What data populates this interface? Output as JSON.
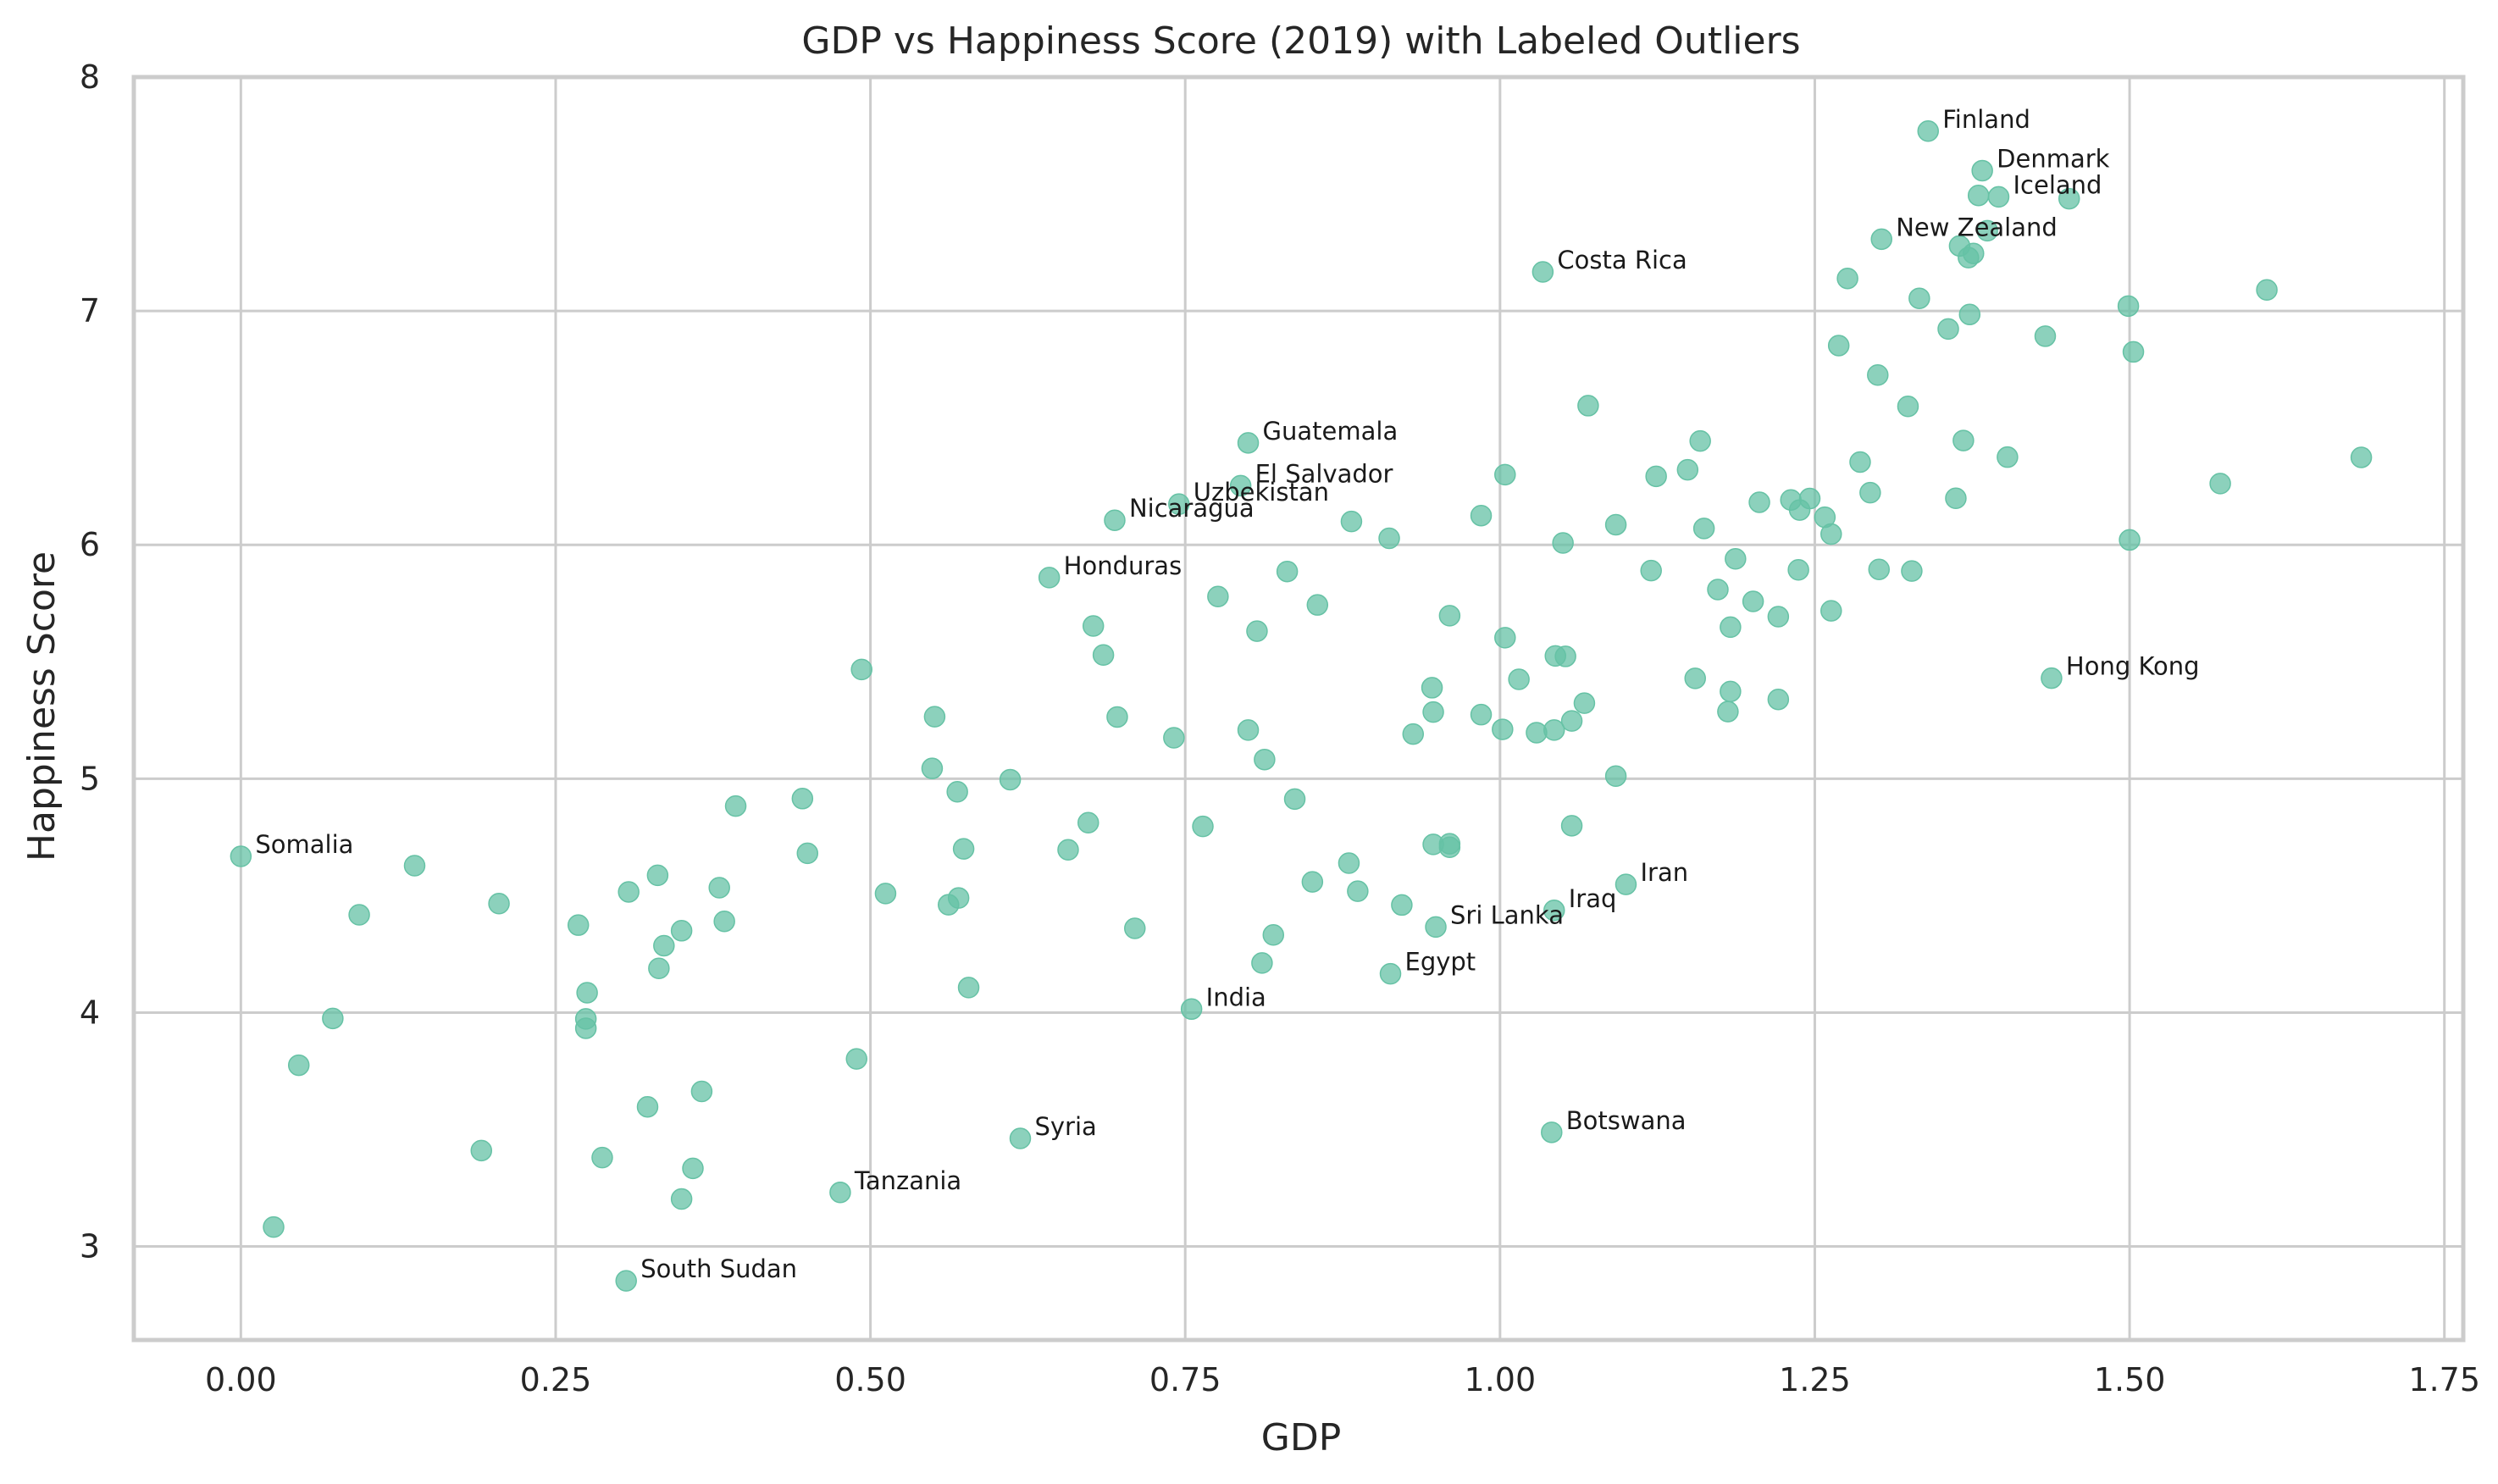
{
  "chart_data": {
    "type": "scatter",
    "title": "GDP vs Happiness Score (2019) with Labeled Outliers",
    "xlabel": "GDP",
    "ylabel": "Happiness Score",
    "xlim": [
      -0.085,
      1.765
    ],
    "ylim": [
      2.6,
      8.0
    ],
    "xticks": [
      0.0,
      0.25,
      0.5,
      0.75,
      1.0,
      1.25,
      1.5,
      1.75
    ],
    "xtick_labels": [
      "0.00",
      "0.25",
      "0.50",
      "0.75",
      "1.00",
      "1.25",
      "1.50",
      "1.75"
    ],
    "yticks": [
      3,
      4,
      5,
      6,
      7,
      8
    ],
    "ytick_labels": [
      "3",
      "4",
      "5",
      "6",
      "7",
      "8"
    ],
    "grid": true,
    "colors": {
      "point": "#66c2a5",
      "grid": "#cccccc",
      "spine": "#cccccc"
    },
    "points": [
      [
        1.34,
        7.769
      ],
      [
        1.383,
        7.6
      ],
      [
        1.38,
        7.494
      ],
      [
        1.396,
        7.488
      ],
      [
        1.452,
        7.48
      ],
      [
        1.387,
        7.343
      ],
      [
        1.303,
        7.307
      ],
      [
        1.365,
        7.278
      ],
      [
        1.376,
        7.246
      ],
      [
        1.372,
        7.228
      ],
      [
        1.034,
        7.167
      ],
      [
        1.276,
        7.139
      ],
      [
        1.609,
        7.09
      ],
      [
        1.333,
        7.054
      ],
      [
        1.499,
        7.021
      ],
      [
        1.373,
        6.985
      ],
      [
        1.356,
        6.923
      ],
      [
        1.433,
        6.892
      ],
      [
        1.269,
        6.852
      ],
      [
        1.503,
        6.825
      ],
      [
        1.3,
        6.726
      ],
      [
        1.07,
        6.595
      ],
      [
        1.324,
        6.592
      ],
      [
        1.368,
        6.446
      ],
      [
        1.159,
        6.444
      ],
      [
        0.8,
        6.436
      ],
      [
        1.403,
        6.375
      ],
      [
        1.684,
        6.374
      ],
      [
        1.286,
        6.354
      ],
      [
        1.149,
        6.321
      ],
      [
        1.004,
        6.3
      ],
      [
        1.124,
        6.293
      ],
      [
        1.572,
        6.262
      ],
      [
        0.794,
        6.253
      ],
      [
        1.294,
        6.223
      ],
      [
        1.362,
        6.199
      ],
      [
        1.246,
        6.198
      ],
      [
        1.231,
        6.192
      ],
      [
        1.206,
        6.182
      ],
      [
        0.745,
        6.174
      ],
      [
        1.238,
        6.149
      ],
      [
        0.985,
        6.125
      ],
      [
        1.258,
        6.118
      ],
      [
        0.694,
        6.105
      ],
      [
        0.882,
        6.1
      ],
      [
        1.092,
        6.086
      ],
      [
        1.162,
        6.07
      ],
      [
        1.263,
        6.046
      ],
      [
        0.912,
        6.028
      ],
      [
        1.5,
        6.021
      ],
      [
        1.05,
        6.008
      ],
      [
        1.187,
        5.94
      ],
      [
        1.301,
        5.895
      ],
      [
        1.237,
        5.893
      ],
      [
        1.12,
        5.89
      ],
      [
        1.327,
        5.888
      ],
      [
        0.831,
        5.886
      ],
      [
        0.642,
        5.86
      ],
      [
        1.173,
        5.809
      ],
      [
        0.776,
        5.779
      ],
      [
        1.201,
        5.758
      ],
      [
        0.855,
        5.743
      ],
      [
        1.263,
        5.718
      ],
      [
        0.96,
        5.697
      ],
      [
        1.221,
        5.693
      ],
      [
        0.677,
        5.653
      ],
      [
        1.183,
        5.648
      ],
      [
        0.807,
        5.631
      ],
      [
        1.004,
        5.603
      ],
      [
        0.685,
        5.529
      ],
      [
        1.044,
        5.525
      ],
      [
        1.052,
        5.523
      ],
      [
        1.438,
        5.43
      ],
      [
        1.015,
        5.425
      ],
      [
        1.155,
        5.429
      ],
      [
        0.493,
        5.467
      ],
      [
        0.946,
        5.389
      ],
      [
        1.183,
        5.373
      ],
      [
        1.221,
        5.339
      ],
      [
        1.067,
        5.323
      ],
      [
        1.181,
        5.287
      ],
      [
        0.947,
        5.285
      ],
      [
        0.985,
        5.274
      ],
      [
        0.551,
        5.265
      ],
      [
        0.696,
        5.264
      ],
      [
        1.057,
        5.247
      ],
      [
        1.002,
        5.211
      ],
      [
        1.043,
        5.208
      ],
      [
        0.8,
        5.208
      ],
      [
        0.931,
        5.191
      ],
      [
        1.029,
        5.197
      ],
      [
        0.741,
        5.175
      ],
      [
        0.813,
        5.082
      ],
      [
        0.549,
        5.044
      ],
      [
        1.092,
        5.011
      ],
      [
        0.611,
        4.996
      ],
      [
        0.569,
        4.944
      ],
      [
        0.837,
        4.913
      ],
      [
        0.446,
        4.915
      ],
      [
        0.393,
        4.883
      ],
      [
        0.673,
        4.812
      ],
      [
        1.057,
        4.799
      ],
      [
        0.764,
        4.796
      ],
      [
        0.96,
        4.722
      ],
      [
        0.947,
        4.719
      ],
      [
        0.96,
        4.707
      ],
      [
        0.574,
        4.7
      ],
      [
        0.657,
        4.696
      ],
      [
        0.45,
        4.681
      ],
      [
        0.0,
        4.668
      ],
      [
        0.88,
        4.639
      ],
      [
        0.138,
        4.628
      ],
      [
        0.331,
        4.587
      ],
      [
        1.1,
        4.548
      ],
      [
        0.851,
        4.559
      ],
      [
        0.38,
        4.534
      ],
      [
        0.887,
        4.519
      ],
      [
        0.308,
        4.516
      ],
      [
        0.512,
        4.509
      ],
      [
        0.57,
        4.49
      ],
      [
        0.205,
        4.466
      ],
      [
        0.562,
        4.461
      ],
      [
        0.922,
        4.46
      ],
      [
        1.043,
        4.437
      ],
      [
        0.094,
        4.418
      ],
      [
        0.384,
        4.39
      ],
      [
        0.268,
        4.374
      ],
      [
        0.949,
        4.366
      ],
      [
        0.71,
        4.36
      ],
      [
        0.35,
        4.35
      ],
      [
        0.82,
        4.332
      ],
      [
        0.336,
        4.286
      ],
      [
        0.811,
        4.212
      ],
      [
        0.332,
        4.189
      ],
      [
        0.913,
        4.166
      ],
      [
        0.578,
        4.107
      ],
      [
        0.275,
        4.085
      ],
      [
        0.755,
        4.015
      ],
      [
        0.073,
        3.975
      ],
      [
        0.274,
        3.973
      ],
      [
        0.274,
        3.933
      ],
      [
        0.489,
        3.802
      ],
      [
        0.046,
        3.775
      ],
      [
        0.366,
        3.663
      ],
      [
        0.323,
        3.597
      ],
      [
        1.041,
        3.488
      ],
      [
        0.619,
        3.462
      ],
      [
        0.191,
        3.41
      ],
      [
        0.287,
        3.38
      ],
      [
        0.359,
        3.334
      ],
      [
        0.476,
        3.231
      ],
      [
        0.35,
        3.203
      ],
      [
        0.026,
        3.083
      ],
      [
        0.306,
        2.853
      ]
    ],
    "annotations": [
      {
        "text": "Finland",
        "x": 1.34,
        "y": 7.769
      },
      {
        "text": "Denmark",
        "x": 1.383,
        "y": 7.6
      },
      {
        "text": "Iceland",
        "x": 1.396,
        "y": 7.488
      },
      {
        "text": "New Zealand",
        "x": 1.303,
        "y": 7.307
      },
      {
        "text": "Costa Rica",
        "x": 1.034,
        "y": 7.167
      },
      {
        "text": "Guatemala",
        "x": 0.8,
        "y": 6.436
      },
      {
        "text": "El Salvador",
        "x": 0.794,
        "y": 6.253
      },
      {
        "text": "Uzbekistan",
        "x": 0.745,
        "y": 6.174
      },
      {
        "text": "Nicaragua",
        "x": 0.694,
        "y": 6.105
      },
      {
        "text": "Honduras",
        "x": 0.642,
        "y": 5.86
      },
      {
        "text": "Hong Kong",
        "x": 1.438,
        "y": 5.43
      },
      {
        "text": "Somalia",
        "x": 0.0,
        "y": 4.668
      },
      {
        "text": "Iran",
        "x": 1.1,
        "y": 4.548
      },
      {
        "text": "Iraq",
        "x": 1.043,
        "y": 4.437
      },
      {
        "text": "Sri Lanka",
        "x": 0.949,
        "y": 4.366
      },
      {
        "text": "Egypt",
        "x": 0.913,
        "y": 4.166
      },
      {
        "text": "India",
        "x": 0.755,
        "y": 4.015
      },
      {
        "text": "Botswana",
        "x": 1.041,
        "y": 3.488
      },
      {
        "text": "Syria",
        "x": 0.619,
        "y": 3.462
      },
      {
        "text": "Tanzania",
        "x": 0.476,
        "y": 3.231
      },
      {
        "text": "South Sudan",
        "x": 0.306,
        "y": 2.853
      }
    ]
  }
}
